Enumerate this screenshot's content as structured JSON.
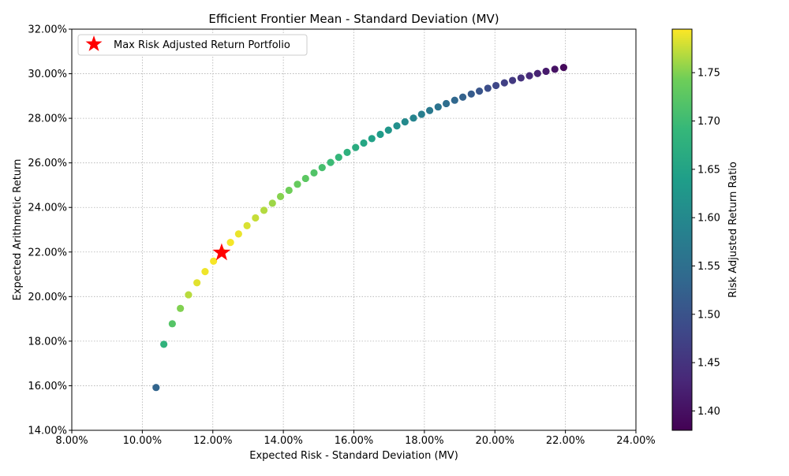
{
  "chart_data": {
    "type": "scatter",
    "title": "Efficient Frontier Mean - Standard Deviation (MV)",
    "xlabel": "Expected Risk - Standard Deviation (MV)",
    "ylabel": "Expected Arithmetic Return",
    "xlim": [
      8,
      24
    ],
    "ylim": [
      14,
      32
    ],
    "x_ticks": [
      8,
      10,
      12,
      14,
      16,
      18,
      20,
      22,
      24
    ],
    "x_tick_labels": [
      "8.00%",
      "10.00%",
      "12.00%",
      "14.00%",
      "16.00%",
      "18.00%",
      "20.00%",
      "22.00%",
      "24.00%"
    ],
    "y_ticks": [
      14,
      16,
      18,
      20,
      22,
      24,
      26,
      28,
      30,
      32
    ],
    "y_tick_labels": [
      "14.00%",
      "16.00%",
      "18.00%",
      "20.00%",
      "22.00%",
      "24.00%",
      "26.00%",
      "28.00%",
      "30.00%",
      "32.00%"
    ],
    "grid": true,
    "legend_position": "top-left",
    "colorbar": {
      "label": "Risk Adjusted Return Ratio",
      "range": [
        1.38,
        1.795
      ],
      "ticks": [
        1.4,
        1.45,
        1.5,
        1.55,
        1.6,
        1.65,
        1.7,
        1.75
      ],
      "tick_labels": [
        "1.40",
        "1.45",
        "1.50",
        "1.55",
        "1.60",
        "1.65",
        "1.70",
        "1.75"
      ],
      "colormap": "viridis"
    },
    "frontier_points": [
      {
        "x": 10.39,
        "y": 15.92,
        "c": 1.53
      },
      {
        "x": 10.61,
        "y": 17.86,
        "c": 1.68
      },
      {
        "x": 10.85,
        "y": 18.78,
        "c": 1.72
      },
      {
        "x": 11.08,
        "y": 19.47,
        "c": 1.75
      },
      {
        "x": 11.31,
        "y": 20.08,
        "c": 1.77
      },
      {
        "x": 11.55,
        "y": 20.62,
        "c": 1.785
      },
      {
        "x": 11.78,
        "y": 21.12,
        "c": 1.79
      },
      {
        "x": 12.02,
        "y": 21.59,
        "c": 1.793
      },
      {
        "x": 12.26,
        "y": 22.02,
        "c": 1.795
      },
      {
        "x": 12.5,
        "y": 22.43,
        "c": 1.792
      },
      {
        "x": 12.73,
        "y": 22.81,
        "c": 1.788
      },
      {
        "x": 12.97,
        "y": 23.18,
        "c": 1.782
      },
      {
        "x": 13.21,
        "y": 23.53,
        "c": 1.775
      },
      {
        "x": 13.45,
        "y": 23.87,
        "c": 1.768
      },
      {
        "x": 13.69,
        "y": 24.19,
        "c": 1.76
      },
      {
        "x": 13.92,
        "y": 24.49,
        "c": 1.752
      },
      {
        "x": 14.16,
        "y": 24.77,
        "c": 1.743
      },
      {
        "x": 14.4,
        "y": 25.04,
        "c": 1.735
      },
      {
        "x": 14.63,
        "y": 25.3,
        "c": 1.727
      },
      {
        "x": 14.87,
        "y": 25.55,
        "c": 1.718
      },
      {
        "x": 15.1,
        "y": 25.79,
        "c": 1.708
      },
      {
        "x": 15.34,
        "y": 26.02,
        "c": 1.698
      },
      {
        "x": 15.57,
        "y": 26.25,
        "c": 1.688
      },
      {
        "x": 15.81,
        "y": 26.47,
        "c": 1.677
      },
      {
        "x": 16.05,
        "y": 26.69,
        "c": 1.667
      },
      {
        "x": 16.28,
        "y": 26.89,
        "c": 1.656
      },
      {
        "x": 16.51,
        "y": 27.09,
        "c": 1.646
      },
      {
        "x": 16.75,
        "y": 27.28,
        "c": 1.635
      },
      {
        "x": 16.98,
        "y": 27.47,
        "c": 1.624
      },
      {
        "x": 17.22,
        "y": 27.66,
        "c": 1.613
      },
      {
        "x": 17.45,
        "y": 27.84,
        "c": 1.602
      },
      {
        "x": 17.69,
        "y": 28.01,
        "c": 1.591
      },
      {
        "x": 17.92,
        "y": 28.18,
        "c": 1.58
      },
      {
        "x": 18.15,
        "y": 28.35,
        "c": 1.569
      },
      {
        "x": 18.39,
        "y": 28.51,
        "c": 1.558
      },
      {
        "x": 18.62,
        "y": 28.66,
        "c": 1.547
      },
      {
        "x": 18.86,
        "y": 28.81,
        "c": 1.536
      },
      {
        "x": 19.09,
        "y": 28.95,
        "c": 1.525
      },
      {
        "x": 19.33,
        "y": 29.09,
        "c": 1.514
      },
      {
        "x": 19.56,
        "y": 29.22,
        "c": 1.503
      },
      {
        "x": 19.8,
        "y": 29.35,
        "c": 1.492
      },
      {
        "x": 20.03,
        "y": 29.47,
        "c": 1.481
      },
      {
        "x": 20.27,
        "y": 29.59,
        "c": 1.47
      },
      {
        "x": 20.5,
        "y": 29.7,
        "c": 1.459
      },
      {
        "x": 20.74,
        "y": 29.81,
        "c": 1.448
      },
      {
        "x": 20.98,
        "y": 29.91,
        "c": 1.437
      },
      {
        "x": 21.21,
        "y": 30.01,
        "c": 1.426
      },
      {
        "x": 21.45,
        "y": 30.11,
        "c": 1.414
      },
      {
        "x": 21.7,
        "y": 30.2,
        "c": 1.403
      },
      {
        "x": 21.95,
        "y": 30.28,
        "c": 1.39
      }
    ],
    "max_portfolio": {
      "name": "Max Risk Adjusted Return Portfolio",
      "x": 12.25,
      "y": 21.97,
      "color": "#ff0000",
      "marker": "star"
    }
  }
}
